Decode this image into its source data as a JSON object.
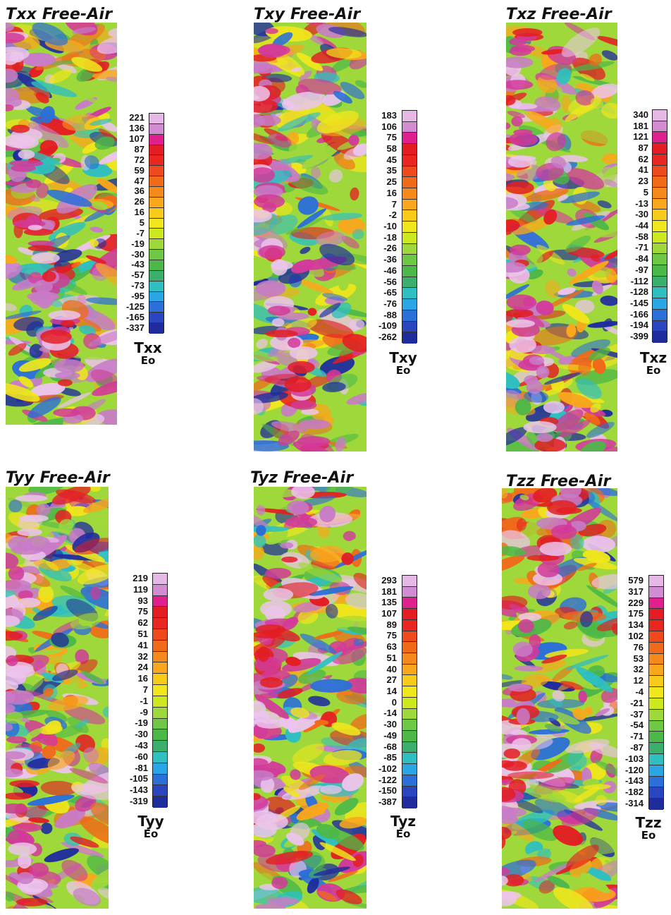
{
  "panels": [
    {
      "id": "txx",
      "title": "Txx Free-Air",
      "component": "Txx",
      "unit": "Eo",
      "ticks": [
        "221",
        "136",
        "107",
        "87",
        "72",
        "59",
        "47",
        "36",
        "26",
        "16",
        "5",
        "-7",
        "-19",
        "-30",
        "-43",
        "-57",
        "-73",
        "-95",
        "-125",
        "-165",
        "-337"
      ]
    },
    {
      "id": "txy",
      "title": "Txy Free-Air",
      "component": "Txy",
      "unit": "Eo",
      "ticks": [
        "183",
        "106",
        "75",
        "58",
        "45",
        "35",
        "25",
        "16",
        "7",
        "-2",
        "-10",
        "-18",
        "-26",
        "-36",
        "-46",
        "-56",
        "-65",
        "-76",
        "-88",
        "-109",
        "-262"
      ]
    },
    {
      "id": "txz",
      "title": "Txz Free-Air",
      "component": "Txz",
      "unit": "Eo",
      "ticks": [
        "340",
        "181",
        "121",
        "87",
        "62",
        "41",
        "23",
        "5",
        "-13",
        "-30",
        "-44",
        "-58",
        "-71",
        "-84",
        "-97",
        "-112",
        "-128",
        "-145",
        "-166",
        "-194",
        "-399"
      ]
    },
    {
      "id": "tyy",
      "title": "Tyy Free-Air",
      "component": "Tyy",
      "unit": "Eo",
      "ticks": [
        "219",
        "119",
        "93",
        "75",
        "62",
        "51",
        "41",
        "32",
        "24",
        "16",
        "7",
        "-1",
        "-9",
        "-19",
        "-30",
        "-43",
        "-60",
        "-81",
        "-105",
        "-143",
        "-319"
      ]
    },
    {
      "id": "tyz",
      "title": "Tyz Free-Air",
      "component": "Tyz",
      "unit": "Eo",
      "ticks": [
        "293",
        "181",
        "135",
        "107",
        "89",
        "75",
        "63",
        "51",
        "40",
        "27",
        "14",
        "0",
        "-14",
        "-30",
        "-49",
        "-68",
        "-85",
        "-102",
        "-122",
        "-150",
        "-387"
      ]
    },
    {
      "id": "tzz",
      "title": "Tzz Free-Air",
      "component": "Tzz",
      "unit": "Eo",
      "ticks": [
        "579",
        "317",
        "229",
        "175",
        "134",
        "102",
        "76",
        "53",
        "32",
        "12",
        "-4",
        "-21",
        "-37",
        "-54",
        "-71",
        "-87",
        "-103",
        "-120",
        "-143",
        "-182",
        "-314"
      ]
    }
  ],
  "colors": {
    "scale": [
      "#e6b8e6",
      "#d28cd2",
      "#e0208c",
      "#e31d23",
      "#ea2620",
      "#ee4a1e",
      "#f06a1a",
      "#f5891c",
      "#f9a71c",
      "#f8cb1a",
      "#f0e61c",
      "#cde81f",
      "#9fd83a",
      "#6ec846",
      "#4cb848",
      "#3ab06c",
      "#2fbfc0",
      "#2aa6e6",
      "#2b6fd8",
      "#2a45c0",
      "#1f2c9e"
    ],
    "terrain": [
      "#1f2c9e",
      "#2b6fd8",
      "#2fbfc0",
      "#4cb848",
      "#9fd83a",
      "#f0e61c",
      "#f9a71c",
      "#f06a1a",
      "#e31d23",
      "#d23a9a",
      "#c87bc8",
      "#ecc4ec"
    ],
    "text": "#111111"
  }
}
